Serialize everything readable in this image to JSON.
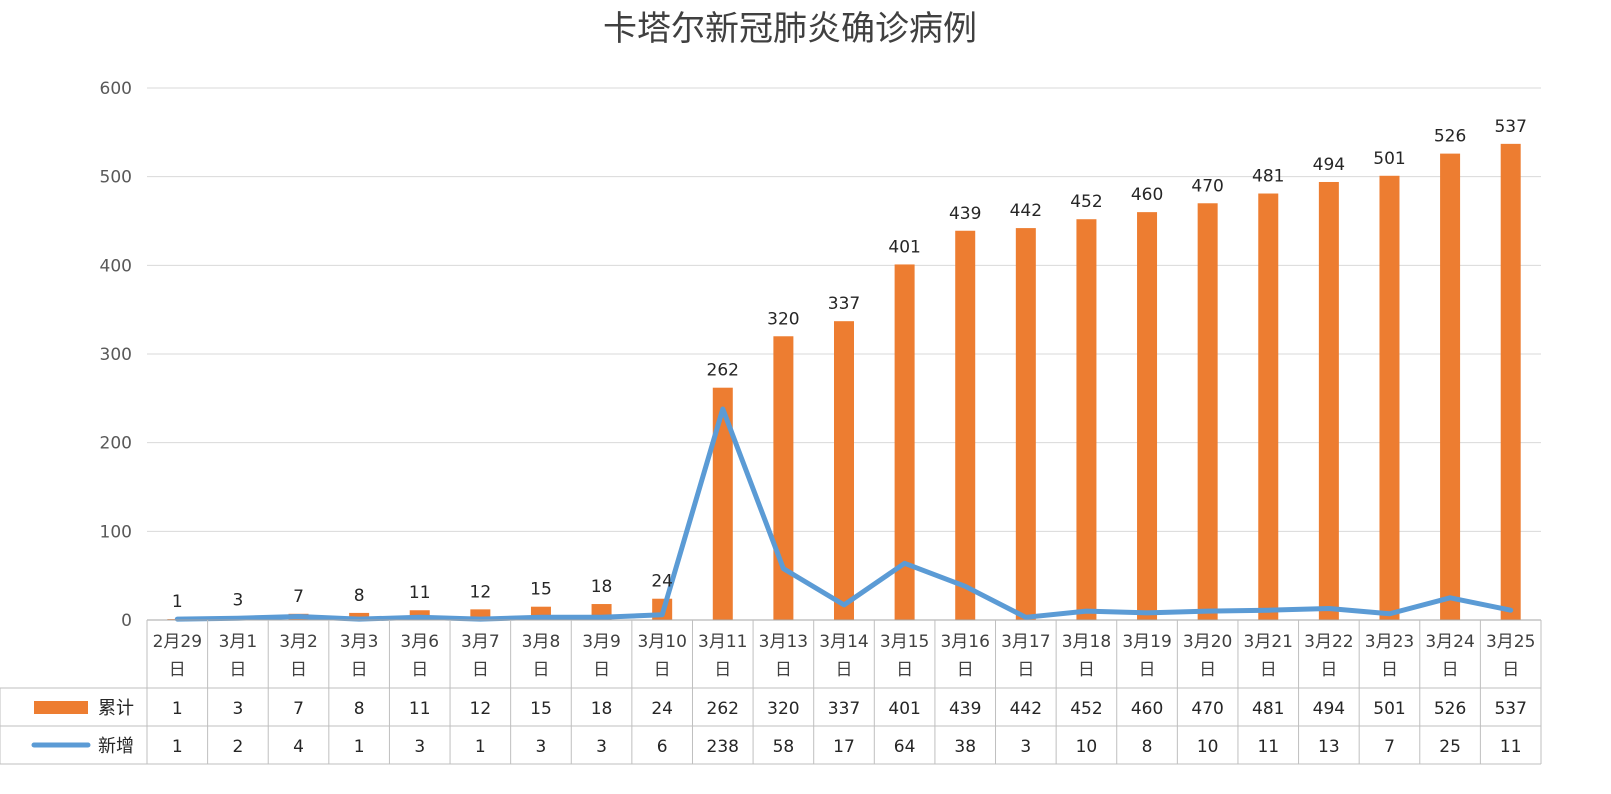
{
  "chart_data": {
    "type": "bar",
    "title": "卡塔尔新冠肺炎确诊病例",
    "categories": [
      [
        "2月29",
        "日"
      ],
      [
        "3月1",
        "日"
      ],
      [
        "3月2",
        "日"
      ],
      [
        "3月3",
        "日"
      ],
      [
        "3月6",
        "日"
      ],
      [
        "3月7",
        "日"
      ],
      [
        "3月8",
        "日"
      ],
      [
        "3月9",
        "日"
      ],
      [
        "3月10",
        "日"
      ],
      [
        "3月11",
        "日"
      ],
      [
        "3月13",
        "日"
      ],
      [
        "3月14",
        "日"
      ],
      [
        "3月15",
        "日"
      ],
      [
        "3月16",
        "日"
      ],
      [
        "3月17",
        "日"
      ],
      [
        "3月18",
        "日"
      ],
      [
        "3月19",
        "日"
      ],
      [
        "3月20",
        "日"
      ],
      [
        "3月21",
        "日"
      ],
      [
        "3月22",
        "日"
      ],
      [
        "3月23",
        "日"
      ],
      [
        "3月24",
        "日"
      ],
      [
        "3月25",
        "日"
      ]
    ],
    "series": [
      {
        "name": "累计",
        "type": "bar",
        "color": "#ED7D31",
        "values": [
          1,
          3,
          7,
          8,
          11,
          12,
          15,
          18,
          24,
          262,
          320,
          337,
          401,
          439,
          442,
          452,
          460,
          470,
          481,
          494,
          501,
          526,
          537
        ]
      },
      {
        "name": "新增",
        "type": "line",
        "color": "#5B9BD5",
        "values": [
          1,
          2,
          4,
          1,
          3,
          1,
          3,
          3,
          6,
          238,
          58,
          17,
          64,
          38,
          3,
          10,
          8,
          10,
          11,
          13,
          7,
          25,
          11
        ]
      }
    ],
    "ylim": [
      0,
      600
    ],
    "yticks": [
      0,
      100,
      200,
      300,
      400,
      500,
      600
    ],
    "grid": true,
    "data_table": true,
    "legend": "data-table"
  }
}
